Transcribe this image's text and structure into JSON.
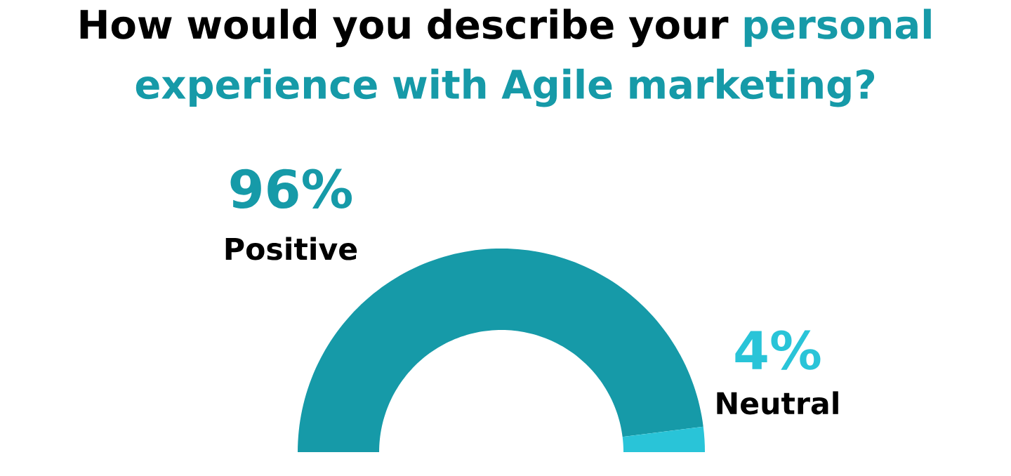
{
  "chart_data": {
    "type": "donut",
    "title": "How would you describe your",
    "subtitle": "personal experience with Agile marketing?",
    "categories": [
      "Positive",
      "Neutral"
    ],
    "values": [
      96,
      4
    ],
    "value_labels": [
      "96%",
      "4%"
    ],
    "colors": [
      "#169aa8",
      "#29c4d8"
    ]
  }
}
